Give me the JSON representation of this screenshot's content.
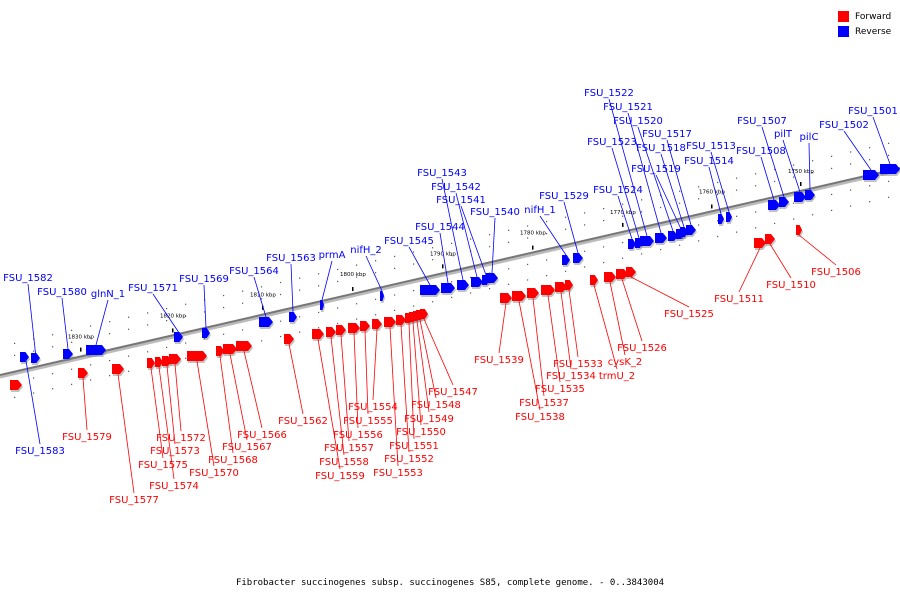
{
  "legend": {
    "forward_label": "Forward",
    "reverse_label": "Reverse",
    "forward_color": "#ff0000",
    "reverse_color": "#0000ff"
  },
  "caption": "Fibrobacter succinogenes subsp. succinogenes S85, complete genome. - 0..3843004",
  "axis": {
    "tick_labels": [
      "1830 kbp",
      "1820 kbp",
      "1810 kbp",
      "1800 kbp",
      "1790 kbp",
      "1780 kbp",
      "1770 kbp",
      "1760 kbp",
      "1750 kbp"
    ]
  },
  "reverse_genes": [
    "FSU_1583",
    "FSU_1582",
    "FSU_1580",
    "glnN_1",
    "FSU_1571",
    "FSU_1569",
    "FSU_1564",
    "FSU_1563",
    "prmA",
    "nifH_2",
    "FSU_1545",
    "FSU_1544",
    "FSU_1543",
    "FSU_1542",
    "FSU_1541",
    "FSU_1540",
    "nifH_1",
    "FSU_1529",
    "FSU_1524",
    "FSU_1523",
    "FSU_1522",
    "FSU_1521",
    "FSU_1520",
    "FSU_1519",
    "FSU_1518",
    "FSU_1517",
    "FSU_1514",
    "FSU_1513",
    "FSU_1508",
    "FSU_1507",
    "pilT",
    "pilC",
    "FSU_1502",
    "FSU_1501"
  ],
  "forward_genes": [
    "FSU_1579",
    "FSU_1577",
    "FSU_1575",
    "FSU_1574",
    "FSU_1573",
    "FSU_1572",
    "FSU_1570",
    "FSU_1568",
    "FSU_1567",
    "FSU_1566",
    "FSU_1562",
    "FSU_1559",
    "FSU_1558",
    "FSU_1557",
    "FSU_1556",
    "FSU_1555",
    "FSU_1554",
    "FSU_1553",
    "FSU_1552",
    "FSU_1551",
    "FSU_1550",
    "FSU_1549",
    "FSU_1548",
    "FSU_1547",
    "FSU_1539",
    "FSU_1538",
    "FSU_1537",
    "FSU_1535",
    "FSU_1534",
    "FSU_1533",
    "trmU_2",
    "cysK_2",
    "FSU_1526",
    "FSU_1525",
    "FSU_1511",
    "FSU_1510",
    "FSU_1506"
  ]
}
